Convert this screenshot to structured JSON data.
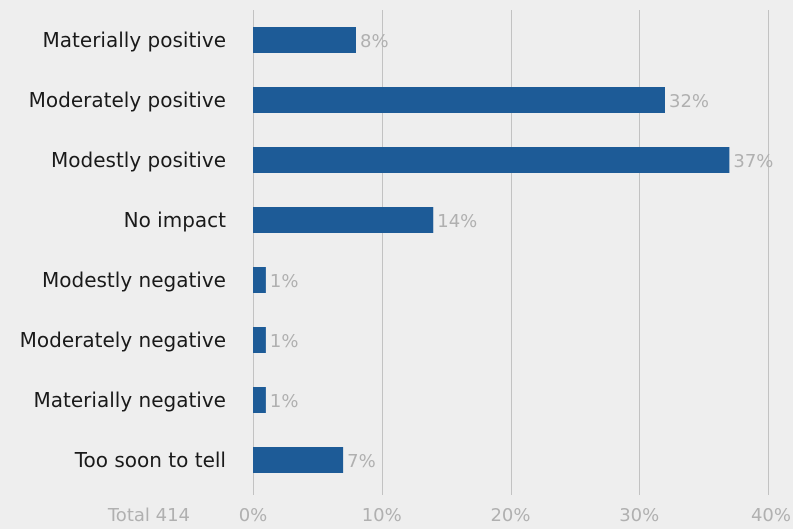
{
  "chart_data": {
    "type": "bar",
    "orientation": "horizontal",
    "categories": [
      "Materially positive",
      "Moderately positive",
      "Modestly positive",
      "No impact",
      "Modestly negative",
      "Moderately negative",
      "Materially negative",
      "Too soon to tell"
    ],
    "values": [
      8,
      32,
      37,
      14,
      1,
      1,
      1,
      7
    ],
    "value_labels": [
      "8%",
      "32%",
      "37%",
      "14%",
      "1%",
      "1%",
      "1%",
      "7%"
    ],
    "xlim": [
      0,
      40
    ],
    "ticks": [
      0,
      10,
      20,
      30,
      40
    ],
    "tick_labels": [
      "0%",
      "10%",
      "20%",
      "30%",
      "40%"
    ],
    "total_label": "Total 414",
    "grid": true,
    "bar_color": "#1d5b97",
    "grid_color": "#c2c2c2",
    "label_color": "#1a1a1a",
    "muted_color": "#b0b0b0",
    "background": "#eeeeee"
  }
}
